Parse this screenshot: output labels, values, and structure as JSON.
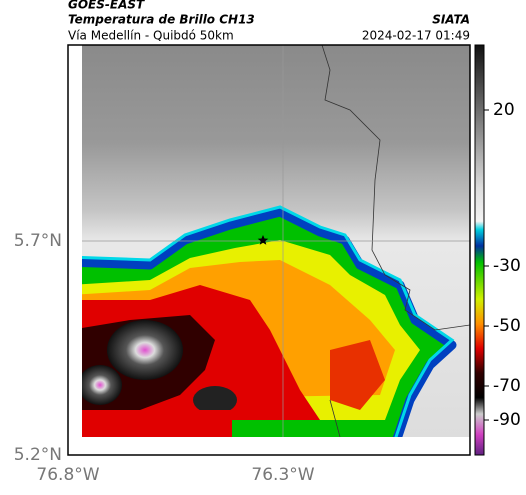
{
  "header": {
    "source": "GOES-EAST",
    "product": "Temperatura de Brillo CH13",
    "agency": "SIATA",
    "route": "Vía Medellín - Quibdó 50km",
    "timestamp": "2024-02-17 01:49"
  },
  "map": {
    "lat_labels": [
      "5.7°N",
      "5.2°N"
    ],
    "lon_labels": [
      "76.8°W",
      "76.3°W"
    ]
  },
  "colorbar": {
    "ticks": [
      20,
      -30,
      -50,
      -70,
      -90
    ]
  }
}
